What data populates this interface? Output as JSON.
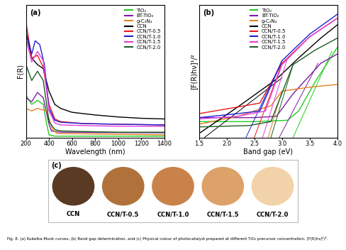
{
  "chart_data": [
    {
      "type": "line",
      "annotations": [
        {
          "text": "(a)"
        }
      ],
      "x_label": "Wavelength (nm)",
      "y_label": "F(R)",
      "xlim": [
        200,
        1400
      ],
      "xticks": [
        200,
        400,
        600,
        800,
        1000,
        1200,
        1400
      ],
      "ylim": [
        0,
        10
      ],
      "tick_labels": "x",
      "legend": "upper right",
      "series": [
        {
          "name": "TiO₂",
          "color": "#22cc22",
          "x": [
            200,
            250,
            300,
            350,
            380,
            400,
            450,
            1400
          ],
          "values": [
            3.2,
            2.5,
            2.8,
            2.5,
            1.0,
            0.2,
            0.1,
            0.1
          ]
        },
        {
          "name": "BT-TiO₂",
          "color": "#7b1fa2",
          "x": [
            200,
            250,
            300,
            350,
            400,
            420,
            500,
            1400
          ],
          "values": [
            3.0,
            2.7,
            3.4,
            3.0,
            1.0,
            0.5,
            0.4,
            0.35
          ]
        },
        {
          "name": "g-C₃N₄",
          "color": "#e67e22",
          "x": [
            200,
            250,
            300,
            380,
            430,
            470,
            1400
          ],
          "values": [
            2.2,
            2.0,
            2.2,
            2.0,
            0.6,
            0.3,
            0.2
          ]
        },
        {
          "name": "CCN",
          "color": "#000000",
          "x": [
            200,
            250,
            300,
            350,
            400,
            450,
            500,
            600,
            800,
            1000,
            1200,
            1400
          ],
          "values": [
            8.0,
            6.0,
            5.5,
            5.2,
            3.5,
            2.5,
            2.2,
            1.9,
            1.7,
            1.55,
            1.45,
            1.4
          ]
        },
        {
          "name": "CCN/T-0.5",
          "color": "#e41a1c",
          "x": [
            200,
            250,
            300,
            350,
            400,
            450,
            500,
            700,
            1000,
            1400
          ],
          "values": [
            8.7,
            6.0,
            6.2,
            5.3,
            2.5,
            1.4,
            1.2,
            1.05,
            1.0,
            0.95
          ]
        },
        {
          "name": "CCN/T-1.0",
          "color": "#1f1fd6",
          "x": [
            200,
            250,
            280,
            320,
            360,
            400,
            450,
            500,
            700,
            1000,
            1400
          ],
          "values": [
            8.0,
            6.3,
            7.3,
            7.0,
            5.5,
            2.2,
            1.3,
            1.15,
            1.05,
            1.0,
            0.95
          ]
        },
        {
          "name": "CCN/T-1.5",
          "color": "#e040e0",
          "x": [
            200,
            250,
            300,
            350,
            400,
            450,
            500,
            700,
            1000,
            1400
          ],
          "values": [
            7.5,
            5.7,
            6.5,
            5.8,
            2.0,
            1.1,
            0.95,
            0.9,
            0.85,
            0.85
          ]
        },
        {
          "name": "CCN/T-2.0",
          "color": "#1b5e20",
          "x": [
            200,
            250,
            300,
            350,
            400,
            450,
            500,
            700,
            1000,
            1400
          ],
          "values": [
            5.5,
            4.3,
            5.0,
            4.3,
            1.2,
            0.6,
            0.5,
            0.45,
            0.4,
            0.4
          ]
        }
      ]
    },
    {
      "type": "line",
      "annotations": [
        {
          "text": "(b)"
        }
      ],
      "x_label": "Band gap (eV)",
      "y_label": "[F(R)hν]¹/²",
      "xlim": [
        1.5,
        4.0
      ],
      "xticks": [
        1.5,
        2.0,
        2.5,
        3.0,
        3.5,
        4.0
      ],
      "ylim": [
        0,
        10
      ],
      "tick_labels": "x",
      "legend": "upper center",
      "series": [
        {
          "name": "TiO₂",
          "color": "#22cc22",
          "x": [
            1.5,
            2.5,
            3.1,
            3.3,
            3.6,
            4.0
          ],
          "values": [
            1.2,
            1.2,
            1.3,
            2.0,
            4.2,
            6.8
          ],
          "tangent": {
            "x": [
              3.2,
              3.9
            ],
            "values": [
              0.0,
              6.5
            ]
          }
        },
        {
          "name": "BT-TiO₂",
          "color": "#7b1fa2",
          "x": [
            1.5,
            2.5,
            2.9,
            3.2,
            3.7,
            4.0
          ],
          "values": [
            1.5,
            1.5,
            1.6,
            3.3,
            5.6,
            6.3
          ],
          "tangent": {
            "x": [
              2.95,
              3.65
            ],
            "values": [
              0.0,
              5.6
            ]
          }
        },
        {
          "name": "g-C₃N₄",
          "color": "#e67e22",
          "x": [
            1.5,
            2.2,
            2.8,
            3.0,
            3.5,
            4.0
          ],
          "values": [
            1.0,
            1.6,
            2.4,
            3.5,
            3.8,
            4.0
          ],
          "tangent": {
            "x": [
              2.75,
              3.0
            ],
            "values": [
              0.0,
              3.5
            ]
          }
        },
        {
          "name": "CCN",
          "color": "#000000",
          "x": [
            1.5,
            2.2,
            2.9,
            3.3,
            3.7,
            4.0
          ],
          "values": [
            0.3,
            2.3,
            4.4,
            6.0,
            7.5,
            8.5
          ],
          "tangent": {
            "x": [
              1.6,
              3.0
            ],
            "values": [
              0.0,
              4.5
            ]
          }
        },
        {
          "name": "CCN/T-0.5",
          "color": "#e41a1c",
          "x": [
            1.5,
            2.2,
            2.6,
            3.0,
            3.5,
            4.0
          ],
          "values": [
            1.8,
            2.3,
            2.6,
            5.6,
            7.6,
            9.0
          ],
          "tangent": {
            "x": [
              2.5,
              3.0
            ],
            "values": [
              0.0,
              5.6
            ]
          }
        },
        {
          "name": "CCN/T-1.0",
          "color": "#1f1fd6",
          "x": [
            1.5,
            2.2,
            2.6,
            3.0,
            3.5,
            4.0
          ],
          "values": [
            1.5,
            1.8,
            2.0,
            5.8,
            7.8,
            9.3
          ],
          "tangent": {
            "x": [
              2.35,
              3.0
            ],
            "values": [
              0.0,
              5.8
            ]
          }
        },
        {
          "name": "CCN/T-1.5",
          "color": "#e040e0",
          "x": [
            1.5,
            2.2,
            2.7,
            3.0,
            3.5,
            4.0
          ],
          "values": [
            1.4,
            1.6,
            2.0,
            5.5,
            7.6,
            9.0
          ],
          "tangent": {
            "x": [
              2.65,
              3.1
            ],
            "values": [
              0.0,
              6.0
            ]
          }
        },
        {
          "name": "CCN/T-2.0",
          "color": "#1b5e20",
          "x": [
            1.5,
            2.4,
            2.8,
            3.2,
            3.6,
            4.0
          ],
          "values": [
            0.8,
            0.9,
            1.2,
            5.5,
            6.6,
            7.5
          ],
          "tangent": {
            "x": [
              2.8,
              3.2
            ],
            "values": [
              0.0,
              5.5
            ]
          }
        }
      ]
    }
  ],
  "photo": {
    "label": "(c)",
    "samples": [
      {
        "name": "CCN",
        "color": "#5a3a22"
      },
      {
        "name": "CCN/T-0.5",
        "color": "#b0723a"
      },
      {
        "name": "CCN/T-1.0",
        "color": "#c9834a"
      },
      {
        "name": "CCN/T-1.5",
        "color": "#dda26a"
      },
      {
        "name": "CCN/T-2.0",
        "color": "#f2d2a8"
      }
    ]
  },
  "caption": "Fig. 8. (a) Kubelka-Munk curves, (b) Band gap determination, and (c) Physical colour of photocatalyst prepared at different TiO₂ precursor concentration. [F(R)hν]¹/²."
}
